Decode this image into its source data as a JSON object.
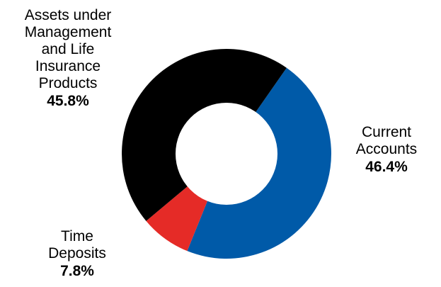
{
  "chart_data": {
    "type": "pie",
    "subtype": "donut",
    "title": "",
    "slices": [
      {
        "label_lines": [
          "Current",
          "Accounts"
        ],
        "value_text": "46.4%",
        "value": 46.4,
        "color": "#005aa8"
      },
      {
        "label_lines": [
          "Time",
          "Deposits"
        ],
        "value_text": "7.8%",
        "value": 7.8,
        "color": "#e52b27"
      },
      {
        "label_lines": [
          "Assets under",
          "Management",
          "and Life",
          "Insurance",
          "Products"
        ],
        "value_text": "45.8%",
        "value": 45.8,
        "color": "#000000"
      }
    ],
    "legend": "none"
  }
}
